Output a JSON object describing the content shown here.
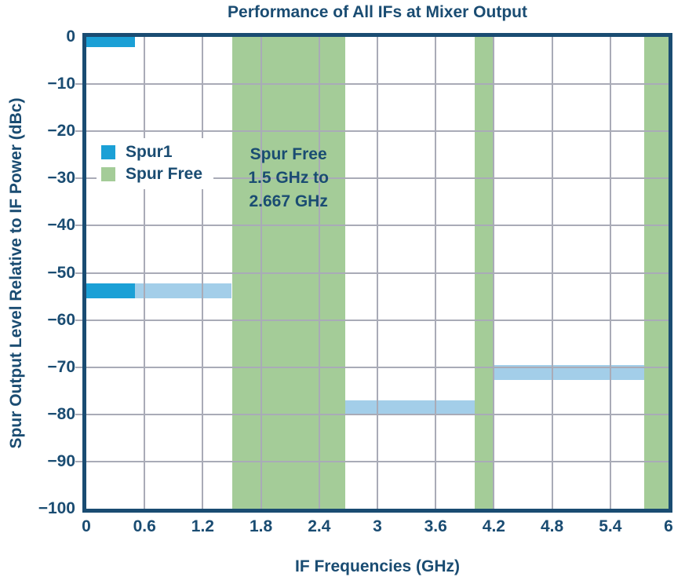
{
  "colors": {
    "navy": "#1A4C72",
    "spur1": "#1BA0D6",
    "spur_light": "#A3CEE9",
    "spur_free": "#A4CC98",
    "gridline": "#A9ABB7",
    "plot_background": "#FFFFFF"
  },
  "chart_data": {
    "type": "bar",
    "title": "Performance of All IFs at Mixer Output",
    "xlabel": "IF Frequencies (GHz)",
    "ylabel": "Spur Output Level Relative to IF Power (dBc)",
    "xlim": [
      0,
      6
    ],
    "ylim": [
      -100,
      0
    ],
    "grid": true,
    "xticks": [
      0,
      0.6,
      1.2,
      1.8,
      2.4,
      3,
      3.6,
      4.2,
      4.8,
      5.4,
      6
    ],
    "xtick_labels": [
      "0",
      "0.6",
      "1.2",
      "1.8",
      "2.4",
      "3",
      "3.6",
      "4.2",
      "4.8",
      "5.4",
      "6"
    ],
    "yticks": [
      0,
      -10,
      -20,
      -30,
      -40,
      -50,
      -60,
      -70,
      -80,
      -90,
      -100
    ],
    "ytick_labels": [
      "0",
      "−10",
      "−20",
      "−30",
      "−40",
      "−50",
      "−60",
      "−70",
      "−80",
      "−90",
      "−100"
    ],
    "legend": {
      "position": "upper-left-inside",
      "entries": [
        {
          "label": "Spur1",
          "color_key": "spur1"
        },
        {
          "label": "Spur Free",
          "color_key": "spur_free"
        }
      ]
    },
    "annotation": {
      "lines": [
        "Spur Free",
        "1.5 GHz to",
        "2.667 GHz"
      ],
      "center_ghz": 2.0835
    },
    "spur_free_bands_ghz": [
      {
        "from": 1.5,
        "to": 2.667
      },
      {
        "from": 4.0,
        "to": 4.2
      },
      {
        "from": 5.75,
        "to": 6.0
      }
    ],
    "spur_bars": [
      {
        "legend_series": "Spur1",
        "color_key": "spur1",
        "ghz_from": 0,
        "ghz_to": 0.5,
        "dbc_from": -2.2,
        "dbc_to": 0
      },
      {
        "legend_series": "Spur1",
        "color_key": "spur1",
        "ghz_from": 0,
        "ghz_to": 0.5,
        "dbc_from": -55.4,
        "dbc_to": -52.2
      },
      {
        "legend_series": "",
        "color_key": "spur_light",
        "ghz_from": 0.5,
        "ghz_to": 1.5,
        "dbc_from": -55.4,
        "dbc_to": -52.2
      },
      {
        "legend_series": "",
        "color_key": "spur_light",
        "ghz_from": 2.667,
        "ghz_to": 4.0,
        "dbc_from": -79.8,
        "dbc_to": -77.0
      },
      {
        "legend_series": "",
        "color_key": "spur_light",
        "ghz_from": 4.2,
        "ghz_to": 5.75,
        "dbc_from": -72.7,
        "dbc_to": -69.5
      }
    ]
  }
}
